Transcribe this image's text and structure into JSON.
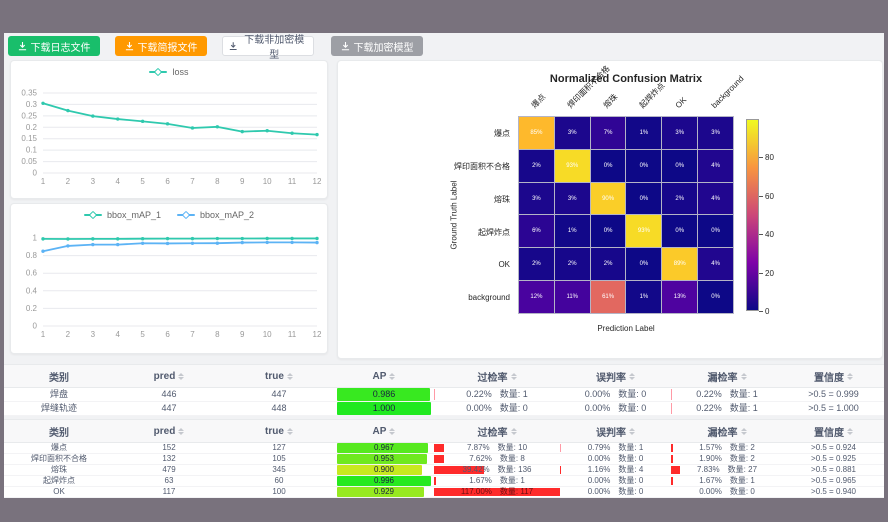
{
  "toolbar": {
    "buttons": [
      {
        "label": "下载日志文件",
        "style": "green"
      },
      {
        "label": "下载简报文件",
        "style": "orange"
      },
      {
        "label": "下载非加密模型",
        "style": "plain"
      },
      {
        "label": "下载加密模型",
        "style": "gray"
      }
    ]
  },
  "chart_data": [
    {
      "id": "loss-chart",
      "type": "line",
      "x": [
        1,
        2,
        3,
        4,
        5,
        6,
        7,
        8,
        9,
        10,
        11,
        12
      ],
      "ylim": [
        0,
        0.35
      ],
      "yticks": [
        0,
        0.05,
        0.1,
        0.15,
        0.2,
        0.25,
        0.3,
        0.35
      ],
      "legend_position": "top",
      "grid": true,
      "series": [
        {
          "name": "loss",
          "color": "#2fc9ae",
          "values": [
            0.305,
            0.273,
            0.249,
            0.236,
            0.226,
            0.215,
            0.197,
            0.202,
            0.181,
            0.185,
            0.174,
            0.168
          ]
        }
      ]
    },
    {
      "id": "bbox-map-chart",
      "type": "line",
      "x": [
        1,
        2,
        3,
        4,
        5,
        6,
        7,
        8,
        9,
        10,
        11,
        12
      ],
      "ylim": [
        0,
        1
      ],
      "yticks": [
        0,
        0.2,
        0.4,
        0.6,
        0.8,
        1
      ],
      "legend_position": "top",
      "grid": true,
      "series": [
        {
          "name": "bbox_mAP_1",
          "color": "#2fc9ae",
          "values": [
            0.99,
            0.989,
            0.99,
            0.99,
            0.992,
            0.993,
            0.993,
            0.994,
            0.994,
            0.995,
            0.995,
            0.995
          ]
        },
        {
          "name": "bbox_mAP_2",
          "color": "#5cb3f5",
          "values": [
            0.85,
            0.91,
            0.925,
            0.925,
            0.94,
            0.938,
            0.94,
            0.941,
            0.948,
            0.95,
            0.95,
            0.948
          ]
        }
      ]
    },
    {
      "id": "confusion-matrix",
      "type": "heatmap",
      "title": "Normalized Confusion Matrix",
      "xlabel": "Prediction Label",
      "ylabel": "Ground Truth Label",
      "classes": [
        "爆点",
        "焊印面积不合格",
        "熔珠",
        "起焊炸点",
        "OK",
        "background"
      ],
      "values_percent": [
        [
          85,
          3,
          7,
          1,
          3,
          3
        ],
        [
          2,
          93,
          0,
          0,
          0,
          4
        ],
        [
          3,
          3,
          90,
          0,
          2,
          4
        ],
        [
          6,
          1,
          0,
          93,
          0,
          0
        ],
        [
          2,
          2,
          2,
          0,
          89,
          4
        ],
        [
          12,
          11,
          61,
          1,
          13,
          0
        ]
      ],
      "vmax": 100,
      "colormap": "plasma",
      "colorbar_ticks": [
        0,
        20,
        40,
        60,
        80
      ],
      "legend_position": "right"
    }
  ],
  "tables": {
    "count_label": "数量:",
    "headers": [
      {
        "label": "类别",
        "sortable": false
      },
      {
        "label": "pred",
        "sortable": true
      },
      {
        "label": "true",
        "sortable": true
      },
      {
        "label": "AP",
        "sortable": true
      },
      {
        "label": "过检率",
        "sortable": true
      },
      {
        "label": "误判率",
        "sortable": true
      },
      {
        "label": "漏检率",
        "sortable": true
      },
      {
        "label": "置信度",
        "sortable": true
      }
    ],
    "groups": [
      {
        "rows": [
          {
            "name": "焊盘",
            "pred": "446",
            "true": "447",
            "ap": 0.986,
            "rates": [
              {
                "pct": 0.22,
                "count": 1
              },
              {
                "pct": 0.0,
                "count": 0
              },
              {
                "pct": 0.22,
                "count": 1
              }
            ],
            "confidence": ">0.5 = 0.999"
          },
          {
            "name": "焊缝轨迹",
            "pred": "447",
            "true": "448",
            "ap": 1.0,
            "rates": [
              {
                "pct": 0.0,
                "count": 0
              },
              {
                "pct": 0.0,
                "count": 0
              },
              {
                "pct": 0.22,
                "count": 1
              }
            ],
            "confidence": ">0.5 = 1.000"
          }
        ]
      },
      {
        "rows": [
          {
            "name": "爆点",
            "pred": "152",
            "true": "127",
            "ap": 0.967,
            "rates": [
              {
                "pct": 7.87,
                "count": 10
              },
              {
                "pct": 0.79,
                "count": 1
              },
              {
                "pct": 1.57,
                "count": 2
              }
            ],
            "confidence": ">0.5 = 0.924"
          },
          {
            "name": "焊印面积不合格",
            "pred": "132",
            "true": "105",
            "ap": 0.953,
            "rates": [
              {
                "pct": 7.62,
                "count": 8
              },
              {
                "pct": 0.0,
                "count": 0
              },
              {
                "pct": 1.9,
                "count": 2
              }
            ],
            "confidence": ">0.5 = 0.925"
          },
          {
            "name": "熔珠",
            "pred": "479",
            "true": "345",
            "ap": 0.9,
            "rates": [
              {
                "pct": 39.42,
                "count": 136
              },
              {
                "pct": 1.16,
                "count": 4
              },
              {
                "pct": 7.83,
                "count": 27
              }
            ],
            "confidence": ">0.5 = 0.881"
          },
          {
            "name": "起焊炸点",
            "pred": "63",
            "true": "60",
            "ap": 0.996,
            "rates": [
              {
                "pct": 1.67,
                "count": 1
              },
              {
                "pct": 0.0,
                "count": 0
              },
              {
                "pct": 1.67,
                "count": 1
              }
            ],
            "confidence": ">0.5 = 0.965"
          },
          {
            "name": "OK",
            "pred": "117",
            "true": "100",
            "ap": 0.929,
            "rates": [
              {
                "pct": 117.0,
                "count": 117
              },
              {
                "pct": 0.0,
                "count": 0
              },
              {
                "pct": 0.0,
                "count": 0
              }
            ],
            "confidence": ">0.5 = 0.940"
          }
        ]
      }
    ]
  }
}
